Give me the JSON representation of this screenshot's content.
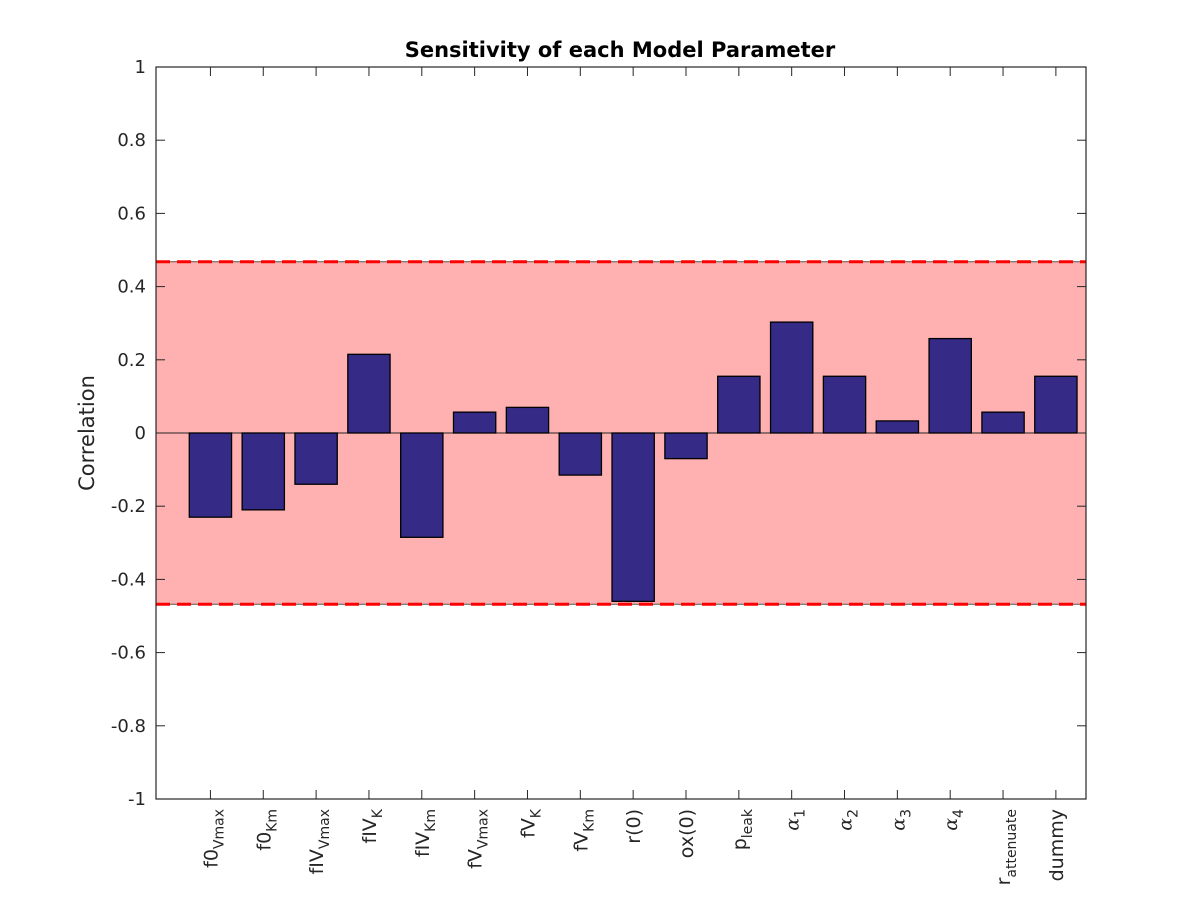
{
  "chart_data": {
    "type": "bar",
    "title": "Sensitivity of each Model Parameter",
    "xlabel": "",
    "ylabel": "Correlation",
    "ylim": [
      -1,
      1
    ],
    "yticks": [
      "1",
      "0.8",
      "0.6",
      "0.4",
      "0.2",
      "0",
      "-0.2",
      "-0.4",
      "-0.6",
      "-0.8",
      "-1"
    ],
    "ytick_values": [
      1,
      0.8,
      0.6,
      0.4,
      0.2,
      0,
      -0.2,
      -0.4,
      -0.6,
      -0.8,
      -1
    ],
    "grid": false,
    "categories": [
      {
        "base": "f0",
        "sub": "Vmax",
        "greek": false
      },
      {
        "base": "f0",
        "sub": "Km",
        "greek": false
      },
      {
        "base": "fIV",
        "sub": "Vmax",
        "greek": false
      },
      {
        "base": "fIV",
        "sub": "K",
        "greek": false
      },
      {
        "base": "fIV",
        "sub": "Km",
        "greek": false
      },
      {
        "base": "fV",
        "sub": "Vmax",
        "greek": false
      },
      {
        "base": "fV",
        "sub": "K",
        "greek": false
      },
      {
        "base": "fV",
        "sub": "Km",
        "greek": false
      },
      {
        "base": "r(0)",
        "sub": "",
        "greek": false
      },
      {
        "base": "ox(0)",
        "sub": "",
        "greek": false
      },
      {
        "base": "p",
        "sub": "leak",
        "greek": false
      },
      {
        "base": "α",
        "sub": "1",
        "greek": true
      },
      {
        "base": "α",
        "sub": "2",
        "greek": true
      },
      {
        "base": "α",
        "sub": "3",
        "greek": true
      },
      {
        "base": "α",
        "sub": "4",
        "greek": true
      },
      {
        "base": "r",
        "sub": "attenuate",
        "greek": false
      },
      {
        "base": "dummy",
        "sub": "",
        "greek": false
      }
    ],
    "values": [
      -0.23,
      -0.21,
      -0.14,
      0.215,
      -0.285,
      0.057,
      0.07,
      -0.115,
      -0.46,
      -0.07,
      0.155,
      0.303,
      0.155,
      0.033,
      0.258,
      0.057,
      0.155
    ],
    "threshold_band": {
      "lower": -0.468,
      "upper": 0.468
    },
    "colors": {
      "bar_fill": "#352a86",
      "bar_edge": "#000000",
      "band_fill": "#ffb0b0",
      "band_line": "#ff0000",
      "axis": "#262626",
      "zero_line": "#262626"
    }
  }
}
